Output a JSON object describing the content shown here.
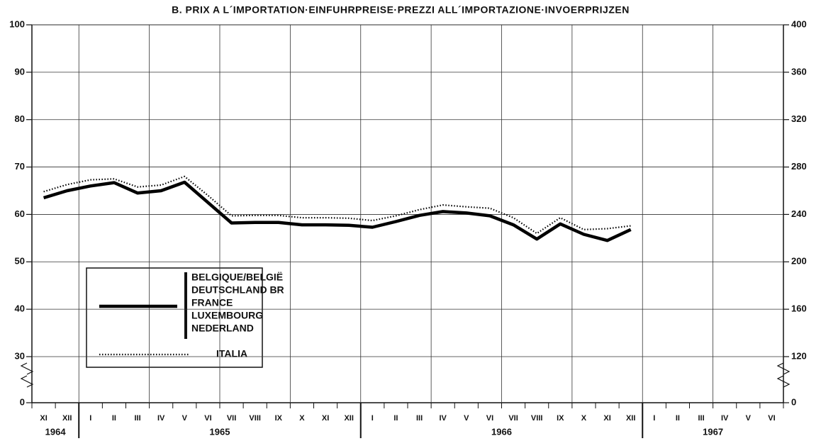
{
  "chart_data": {
    "type": "line",
    "title": "B. PRIX A L´IMPORTATION·EINFUHRPREISE·PREZZI ALL´IMPORTAZIONE·INVOERPRIJZEN",
    "categories": [
      "XI",
      "XII",
      "I",
      "II",
      "III",
      "IV",
      "V",
      "VI",
      "VII",
      "VIII",
      "IX",
      "X",
      "XI",
      "XII",
      "I",
      "II",
      "III",
      "IV",
      "V",
      "VI",
      "VII",
      "VIII",
      "IX",
      "X",
      "XI",
      "XII",
      "I",
      "II",
      "III",
      "IV",
      "V",
      "VI"
    ],
    "category_groups": [
      "1964",
      "1964",
      "1965",
      "1965",
      "1965",
      "1965",
      "1965",
      "1965",
      "1965",
      "1965",
      "1965",
      "1965",
      "1965",
      "1965",
      "1966",
      "1966",
      "1966",
      "1966",
      "1966",
      "1966",
      "1966",
      "1966",
      "1966",
      "1966",
      "1966",
      "1966",
      "1967",
      "1967",
      "1967",
      "1967",
      "1967",
      "1967"
    ],
    "series": [
      {
        "name": [
          "BELGIQUE/BELGIË",
          "DEUTSCHLAND BR",
          "FRANCE",
          "LUXEMBOURG",
          "NEDERLAND"
        ],
        "color": "#000000",
        "style": "solid",
        "values": [
          63.5,
          65,
          66,
          66.7,
          64.5,
          65,
          66.8,
          62.5,
          58.2,
          58.3,
          58.3,
          57.8,
          57.8,
          57.7,
          57.3,
          58.5,
          59.8,
          60.6,
          60.3,
          59.7,
          57.8,
          54.8,
          58,
          55.8,
          54.5,
          56.8,
          null,
          null,
          null,
          null,
          null,
          null
        ]
      },
      {
        "name": [
          "ITALIA"
        ],
        "color": "#000000",
        "style": "dotted",
        "values": [
          64.8,
          66.3,
          67.3,
          67.5,
          65.8,
          66.2,
          68,
          64,
          59.7,
          59.8,
          59.8,
          59.3,
          59.3,
          59.2,
          58.7,
          59.7,
          61,
          62,
          61.6,
          61.3,
          59.3,
          56,
          59.3,
          56.8,
          57,
          57.6,
          null,
          null,
          null,
          null,
          null,
          null
        ]
      }
    ],
    "ylim": [
      0,
      100
    ],
    "yticks": [
      0,
      30,
      40,
      50,
      60,
      70,
      80,
      90,
      100
    ],
    "ybreak": [
      0,
      30
    ],
    "y2lim": [
      0,
      400
    ],
    "y2ticks": [
      0,
      120,
      160,
      200,
      240,
      280,
      320,
      360,
      400
    ],
    "y2break": [
      0,
      120
    ],
    "grid": true
  }
}
